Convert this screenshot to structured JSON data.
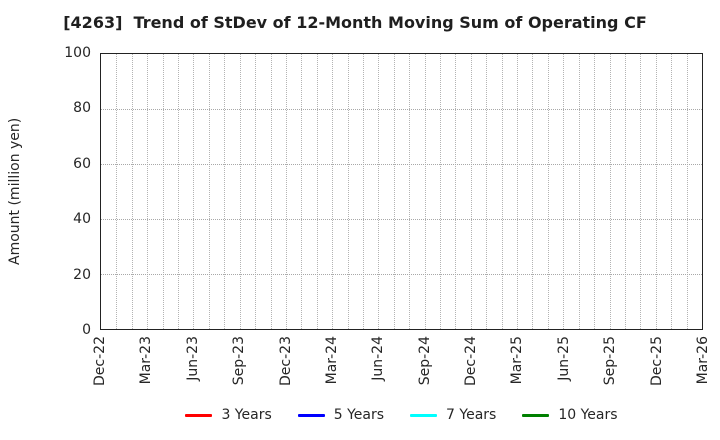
{
  "chart_data": {
    "type": "line",
    "title": "[4263]  Trend of StDev of 12-Month Moving Sum of Operating CF",
    "ylabel": "Amount (million yen)",
    "ylim": [
      0,
      100
    ],
    "yticks": [
      0,
      20,
      40,
      60,
      80,
      100
    ],
    "x_ticklabels": [
      "Dec-22",
      "Mar-23",
      "Jun-23",
      "Sep-23",
      "Dec-23",
      "Mar-24",
      "Jun-24",
      "Sep-24",
      "Dec-24",
      "Mar-25",
      "Jun-25",
      "Sep-25",
      "Dec-25",
      "Mar-26"
    ],
    "x_minor_gridlines_per_major": 3,
    "grid": true,
    "grid_style": "dotted",
    "plot_border_color": "#222222",
    "legend_position": "bottom",
    "series": [
      {
        "name": "3 Years",
        "color": "#ff0000",
        "values": []
      },
      {
        "name": "5 Years",
        "color": "#0000ff",
        "values": []
      },
      {
        "name": "7 Years",
        "color": "#00ffff",
        "values": []
      },
      {
        "name": "10 Years",
        "color": "#008000",
        "values": []
      }
    ]
  }
}
